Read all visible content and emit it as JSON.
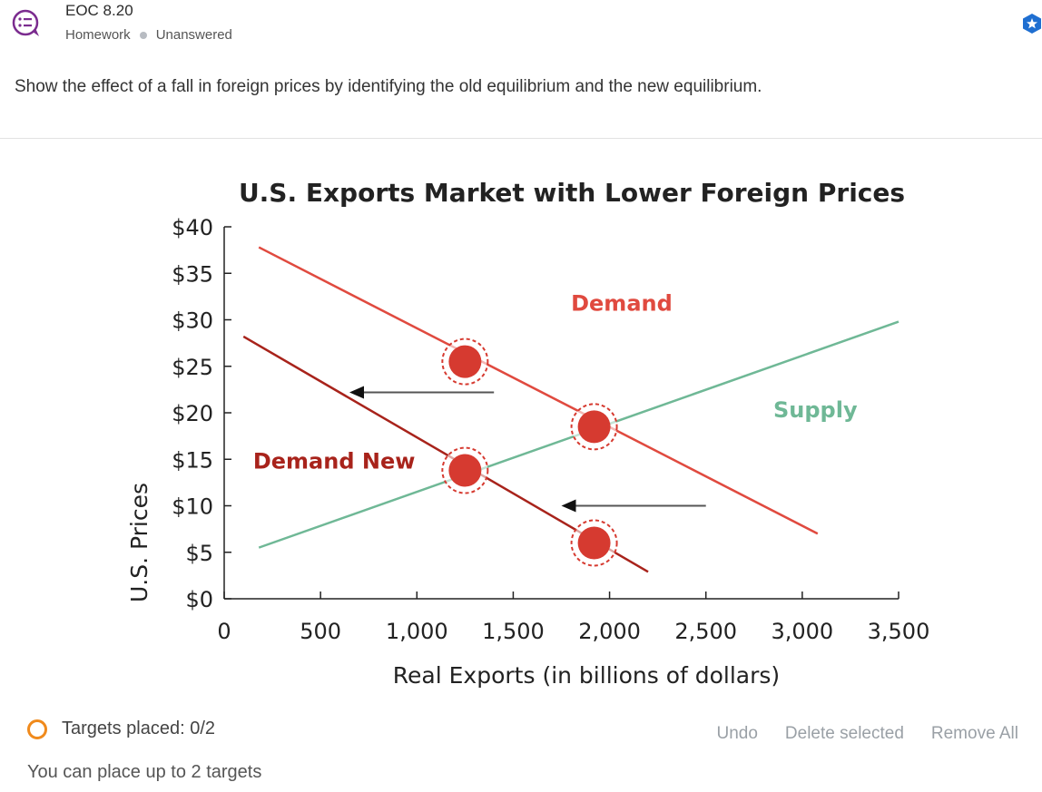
{
  "header": {
    "icon": "question-list-icon",
    "title": "EOC 8.20",
    "type": "Homework",
    "status": "Unanswered",
    "favorite_icon": "star-badge-icon"
  },
  "prompt": "Show the effect of a fall in foreign prices by identifying the old equilibrium and the new equilibrium.",
  "colors": {
    "demand": "#e04a3f",
    "demand_new": "#a8231b",
    "supply": "#6fb896",
    "target": "#d63a30",
    "status_ring": "#f08a1c"
  },
  "chart_data": {
    "type": "line",
    "title": "U.S. Exports Market with Lower Foreign Prices",
    "xlabel": "Real Exports (in billions of dollars)",
    "ylabel": "U.S. Prices",
    "xlim": [
      0,
      3500
    ],
    "ylim": [
      0,
      40
    ],
    "x_ticks": [
      0,
      500,
      1000,
      1500,
      2000,
      2500,
      3000,
      3500
    ],
    "x_tick_labels": [
      "0",
      "500",
      "1,000",
      "1,500",
      "2,000",
      "2,500",
      "3,000",
      "3,500"
    ],
    "y_ticks": [
      0,
      5,
      10,
      15,
      20,
      25,
      30,
      35,
      40
    ],
    "y_tick_labels": [
      "$0",
      "$5",
      "$10",
      "$15",
      "$20",
      "$25",
      "$30",
      "$35",
      "$40"
    ],
    "series": [
      {
        "name": "Demand",
        "color": "#e04a3f",
        "points": [
          [
            180,
            37.8
          ],
          [
            3080,
            7.0
          ]
        ]
      },
      {
        "name": "Demand New",
        "color": "#a8231b",
        "points": [
          [
            100,
            28.2
          ],
          [
            2200,
            2.9
          ]
        ]
      },
      {
        "name": "Supply",
        "color": "#6fb896",
        "points": [
          [
            180,
            5.5
          ],
          [
            3500,
            29.8
          ]
        ]
      }
    ],
    "shift_arrows": [
      {
        "from": [
          1400,
          22.2
        ],
        "to": [
          650,
          22.2
        ]
      },
      {
        "from": [
          2500,
          10.0
        ],
        "to": [
          1750,
          10.0
        ]
      }
    ],
    "targets": [
      [
        1250,
        25.5
      ],
      [
        1920,
        18.5
      ],
      [
        1250,
        13.8
      ],
      [
        1920,
        6.0
      ]
    ]
  },
  "footer": {
    "targets_placed": "Targets placed: 0/2",
    "hint": "You can place up to 2 targets",
    "undo": "Undo",
    "delete_selected": "Delete selected",
    "remove_all": "Remove All"
  }
}
